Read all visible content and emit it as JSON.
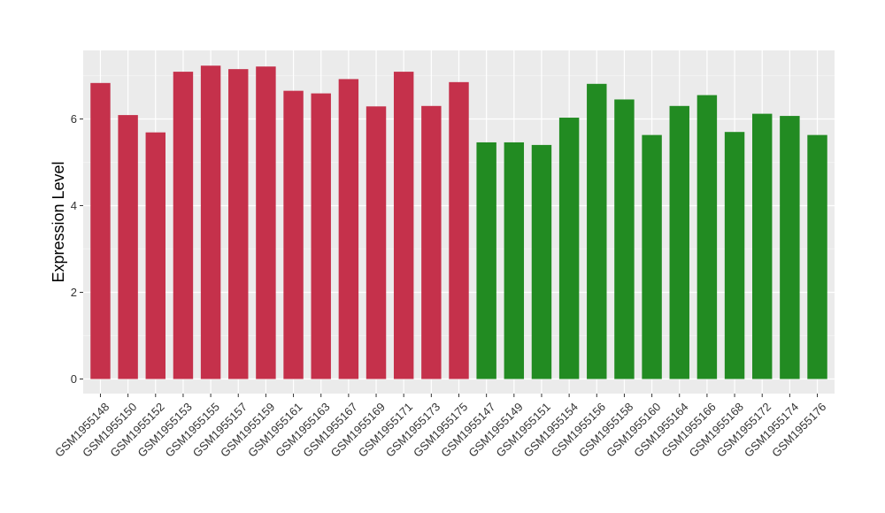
{
  "chart_data": {
    "type": "bar",
    "title": "",
    "xlabel": "",
    "ylabel": "Expression Level",
    "ylim": [
      0,
      7.4
    ],
    "yticks": [
      0,
      2,
      4,
      6
    ],
    "grid": true,
    "background": "#EBEBEB",
    "categories": [
      "GSM1955148",
      "GSM1955150",
      "GSM1955152",
      "GSM1955153",
      "GSM1955155",
      "GSM1955157",
      "GSM1955159",
      "GSM1955161",
      "GSM1955163",
      "GSM1955167",
      "GSM1955169",
      "GSM1955171",
      "GSM1955173",
      "GSM1955175",
      "GSM1955147",
      "GSM1955149",
      "GSM1955151",
      "GSM1955154",
      "GSM1955156",
      "GSM1955158",
      "GSM1955160",
      "GSM1955164",
      "GSM1955166",
      "GSM1955168",
      "GSM1955172",
      "GSM1955174",
      "GSM1955176"
    ],
    "values": [
      6.83,
      6.09,
      5.69,
      7.09,
      7.23,
      7.15,
      7.21,
      6.65,
      6.59,
      6.92,
      6.29,
      7.09,
      6.3,
      6.85,
      5.46,
      5.46,
      5.4,
      6.03,
      6.81,
      6.45,
      5.63,
      6.3,
      6.55,
      5.7,
      6.12,
      6.07,
      5.63
    ],
    "bar_colors": [
      "#C5314B",
      "#C5314B",
      "#C5314B",
      "#C5314B",
      "#C5314B",
      "#C5314B",
      "#C5314B",
      "#C5314B",
      "#C5314B",
      "#C5314B",
      "#C5314B",
      "#C5314B",
      "#C5314B",
      "#C5314B",
      "#228B22",
      "#228B22",
      "#228B22",
      "#228B22",
      "#228B22",
      "#228B22",
      "#228B22",
      "#228B22",
      "#228B22",
      "#228B22",
      "#228B22",
      "#228B22",
      "#228B22"
    ]
  }
}
